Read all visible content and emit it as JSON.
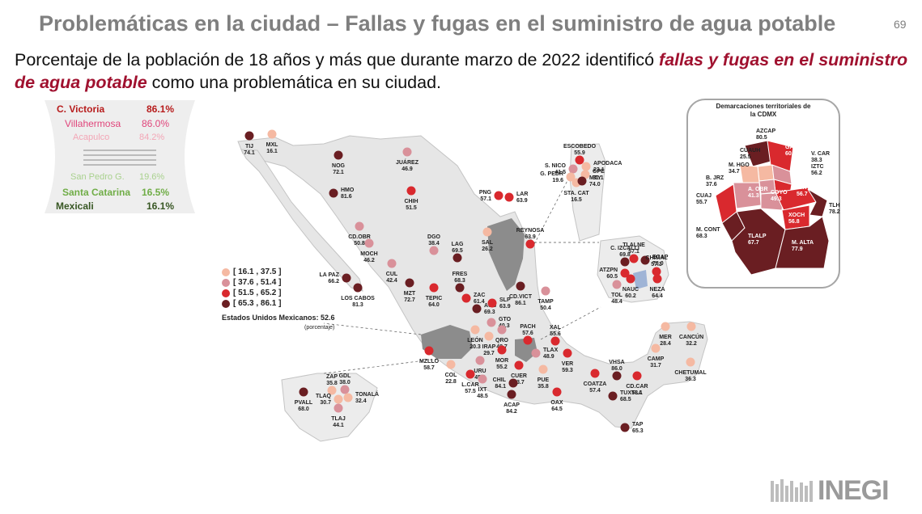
{
  "header": {
    "title": "Problemáticas en la ciudad – Fallas y fugas en el suministro de agua potable",
    "page_number": "69",
    "subtitle_before": "Porcentaje de la población de 18 años y más que durante marzo de 2022 identificó ",
    "subtitle_highlight": "fallas y fugas en el suministro de agua potable",
    "subtitle_after": " como una problemática en su ciudad."
  },
  "colors": {
    "c1": "#f5b9a2",
    "c2": "#d9919a",
    "c3": "#d9292e",
    "c4": "#6a1e22",
    "land": "#e6e6e6",
    "grey_region": "#8c8c8c",
    "cdmx_blue": "#9fb4d6",
    "accent": "#a0112f"
  },
  "ranking": {
    "top": [
      {
        "name": "C. Victoria",
        "value": "86.1%",
        "color": "#b71c1c"
      },
      {
        "name": "Villahermosa",
        "value": "86.0%",
        "color": "#e0457b"
      },
      {
        "name": "Acapulco",
        "value": "84.2%",
        "color": "#f3a6b6"
      }
    ],
    "bottom": [
      {
        "name": "San Pedro G.",
        "value": "19.6%",
        "color": "#a9d18e"
      },
      {
        "name": "Santa Catarina",
        "value": "16.5%",
        "color": "#70ad47"
      },
      {
        "name": "Mexicali",
        "value": "16.1%",
        "color": "#375623"
      }
    ]
  },
  "legend": {
    "items": [
      {
        "label": "[ 16.1 , 37.5 ]",
        "class": "c1"
      },
      {
        "label": "[ 37.6 , 51.4 ]",
        "class": "c2"
      },
      {
        "label": "[ 51.5 , 65.2 ]",
        "class": "c3"
      },
      {
        "label": "[ 65.3 , 86.1 ]",
        "class": "c4"
      }
    ],
    "national_label": "Estados Unidos Mexicanos:",
    "national_value": "52.6",
    "national_note": "(porcentaje)"
  },
  "cities": [
    {
      "name": "TIJ",
      "value": "74.1",
      "class": "c4"
    },
    {
      "name": "MXL",
      "value": "16.1",
      "class": "c1"
    },
    {
      "name": "NOG",
      "value": "72.1",
      "class": "c4"
    },
    {
      "name": "JUÁREZ",
      "value": "46.9",
      "class": "c2"
    },
    {
      "name": "HMO",
      "value": "81.6",
      "class": "c4"
    },
    {
      "name": "CHIH",
      "value": "51.5",
      "class": "c3"
    },
    {
      "name": "CD.OBR",
      "value": "50.8",
      "class": "c2"
    },
    {
      "name": "MOCH",
      "value": "46.2",
      "class": "c2"
    },
    {
      "name": "CUL",
      "value": "42.4",
      "class": "c2"
    },
    {
      "name": "LA PAZ",
      "value": "66.2",
      "class": "c4"
    },
    {
      "name": "LOS CABOS",
      "value": "81.3",
      "class": "c4"
    },
    {
      "name": "MZT",
      "value": "72.7",
      "class": "c4"
    },
    {
      "name": "DGO",
      "value": "38.4",
      "class": "c2"
    },
    {
      "name": "LAG",
      "value": "69.5",
      "class": "c4"
    },
    {
      "name": "SAL",
      "value": "26.2",
      "class": "c1"
    },
    {
      "name": "PNG",
      "value": "57.1",
      "class": "c3"
    },
    {
      "name": "LAR",
      "value": "63.9",
      "class": "c3"
    },
    {
      "name": "REYNOSA",
      "value": "63.9",
      "class": "c3"
    },
    {
      "name": "ESCOBEDO",
      "value": "55.9",
      "class": "c3"
    },
    {
      "name": "S. NICO",
      "value": "41.5",
      "class": "c2"
    },
    {
      "name": "APODACA",
      "value": "23.1",
      "class": "c1"
    },
    {
      "name": "G. PEDR",
      "value": "19.6",
      "class": "c1"
    },
    {
      "name": "GPE",
      "value": "31.1",
      "class": "c1"
    },
    {
      "name": "STA. CAT",
      "value": "16.5",
      "class": "c1"
    },
    {
      "name": "MTY",
      "value": "74.0",
      "class": "c4"
    },
    {
      "name": "FRES",
      "value": "68.3",
      "class": "c4"
    },
    {
      "name": "ZAC",
      "value": "61.4",
      "class": "c3"
    },
    {
      "name": "TEPIC",
      "value": "64.0",
      "class": "c3"
    },
    {
      "name": "AGS",
      "value": "69.3",
      "class": "c4"
    },
    {
      "name": "SLP",
      "value": "63.9",
      "class": "c3"
    },
    {
      "name": "CD.VICT",
      "value": "86.1",
      "class": "c4"
    },
    {
      "name": "TAMP",
      "value": "50.4",
      "class": "c2"
    },
    {
      "name": "GTO",
      "value": "40.3",
      "class": "c2"
    },
    {
      "name": "LEÓN",
      "value": "20.3",
      "class": "c1"
    },
    {
      "name": "IRAP",
      "value": "29.7",
      "class": "c1"
    },
    {
      "name": "QRO",
      "value": "48.7",
      "class": "c2"
    },
    {
      "name": "PACH",
      "value": "57.6",
      "class": "c3"
    },
    {
      "name": "XAL",
      "value": "55.6",
      "class": "c3"
    },
    {
      "name": "TLAX",
      "value": "48.9",
      "class": "c2"
    },
    {
      "name": "VER",
      "value": "59.3",
      "class": "c3"
    },
    {
      "name": "MOR",
      "value": "55.2",
      "class": "c3"
    },
    {
      "name": "MZLLO",
      "value": "58.7",
      "class": "c3"
    },
    {
      "name": "COL",
      "value": "22.8",
      "class": "c1"
    },
    {
      "name": "URU",
      "value": "45.3",
      "class": "c2"
    },
    {
      "name": "CUER",
      "value": "63.7",
      "class": "c3"
    },
    {
      "name": "PUE",
      "value": "35.8",
      "class": "c1"
    },
    {
      "name": "L.CAR",
      "value": "57.5",
      "class": "c3"
    },
    {
      "name": "IXT",
      "value": "48.5",
      "class": "c2"
    },
    {
      "name": "CHIL",
      "value": "84.1",
      "class": "c4"
    },
    {
      "name": "ACAP",
      "value": "84.2",
      "class": "c4"
    },
    {
      "name": "OAX",
      "value": "64.5",
      "class": "c3"
    },
    {
      "name": "COATZA",
      "value": "57.4",
      "class": "c3"
    },
    {
      "name": "VHSA",
      "value": "86.0",
      "class": "c4"
    },
    {
      "name": "CD.CAR",
      "value": "58.1",
      "class": "c3"
    },
    {
      "name": "TUXTLA",
      "value": "68.5",
      "class": "c4"
    },
    {
      "name": "TAP",
      "value": "65.3",
      "class": "c4"
    },
    {
      "name": "CAMP",
      "value": "31.7",
      "class": "c1"
    },
    {
      "name": "MER",
      "value": "28.4",
      "class": "c1"
    },
    {
      "name": "CANCÚN",
      "value": "32.2",
      "class": "c1"
    },
    {
      "name": "CHETUMAL",
      "value": "36.3",
      "class": "c1"
    },
    {
      "name": "ZAP",
      "value": "35.8",
      "class": "c1"
    },
    {
      "name": "GDL",
      "value": "38.0",
      "class": "c2"
    },
    {
      "name": "TONALÁ",
      "value": "32.4",
      "class": "c1"
    },
    {
      "name": "TLAQ",
      "value": "30.7",
      "class": "c1"
    },
    {
      "name": "TLAJ",
      "value": "44.1",
      "class": "c2"
    },
    {
      "name": "PVALL",
      "value": "68.0",
      "class": "c4"
    },
    {
      "name": "TLALNE",
      "value": "57.1",
      "class": "c3"
    },
    {
      "name": "C. IZCALLI",
      "value": "69.8",
      "class": "c4"
    },
    {
      "name": "ECAP",
      "value": "78.0",
      "class": "c4"
    },
    {
      "name": "CHIMAL",
      "value": "57.3",
      "class": "c3"
    },
    {
      "name": "ATZPN",
      "value": "60.5",
      "class": "c3"
    },
    {
      "name": "NEZA",
      "value": "64.4",
      "class": "c3"
    },
    {
      "name": "TOL",
      "value": "48.4",
      "class": "c2"
    },
    {
      "name": "NAUC",
      "value": "60.2",
      "class": "c3"
    }
  ],
  "cdmx": {
    "title": "Demarcaciones territoriales de la CDMX",
    "districts": [
      {
        "name": "AZCAP",
        "value": "80.5",
        "class": "c4"
      },
      {
        "name": "GAM",
        "value": "60.8",
        "class": "c3"
      },
      {
        "name": "CUAUH",
        "value": "25.5",
        "class": "c1"
      },
      {
        "name": "V. CAR",
        "value": "38.3",
        "class": "c2"
      },
      {
        "name": "M. HGO",
        "value": "34.7",
        "class": "c1"
      },
      {
        "name": "IZTC",
        "value": "56.2",
        "class": "c3"
      },
      {
        "name": "B. JRZ",
        "value": "37.6",
        "class": "c2"
      },
      {
        "name": "A. OBR",
        "value": "41.3",
        "class": "c2"
      },
      {
        "name": "COYO",
        "value": "49.3",
        "class": "c2"
      },
      {
        "name": "IZTP",
        "value": "56.7",
        "class": "c3"
      },
      {
        "name": "CUAJ",
        "value": "55.7",
        "class": "c3"
      },
      {
        "name": "TLHC",
        "value": "78.2",
        "class": "c4"
      },
      {
        "name": "XOCH",
        "value": "56.8",
        "class": "c3"
      },
      {
        "name": "M. CONT",
        "value": "68.3",
        "class": "c4"
      },
      {
        "name": "TLALP",
        "value": "67.7",
        "class": "c4"
      },
      {
        "name": "M. ALTA",
        "value": "77.9",
        "class": "c4"
      }
    ]
  },
  "logo": {
    "text": "INEGI"
  }
}
